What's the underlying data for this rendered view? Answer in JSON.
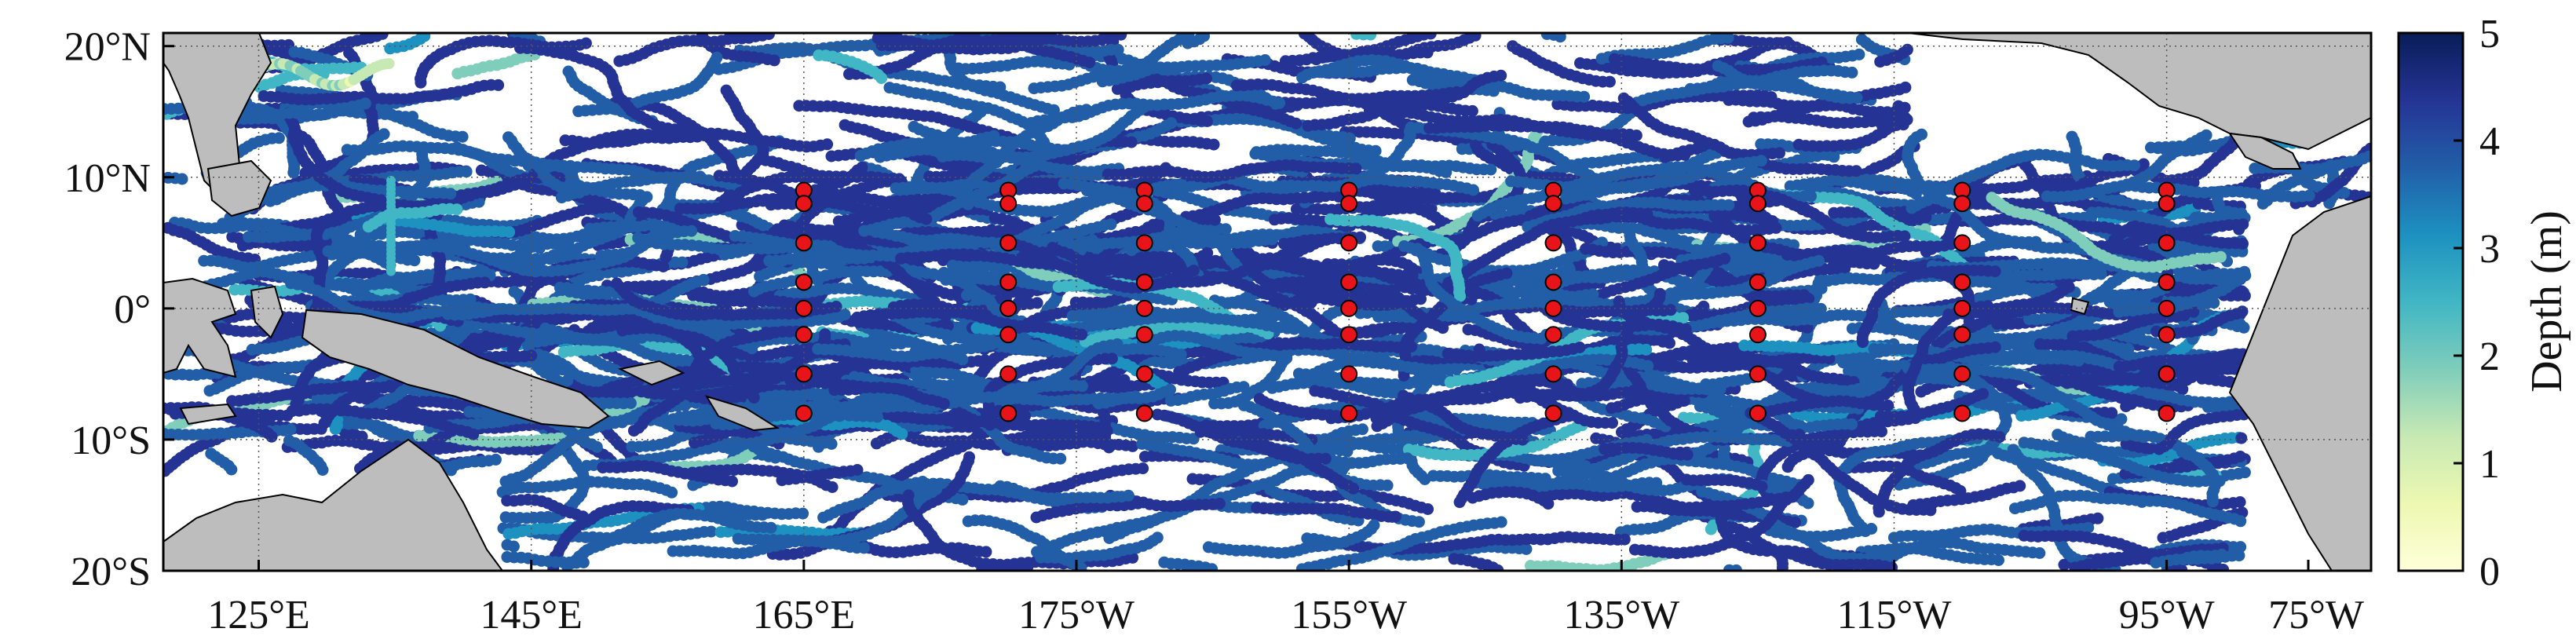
{
  "map": {
    "lon_range_deg_east": [
      118,
      280
    ],
    "lat_range": [
      -20,
      21
    ],
    "lon_ticks": [
      {
        "lon": 125,
        "label": "125°E"
      },
      {
        "lon": 145,
        "label": "145°E"
      },
      {
        "lon": 165,
        "label": "165°E"
      },
      {
        "lon": 185,
        "label": "175°W"
      },
      {
        "lon": 205,
        "label": "155°W"
      },
      {
        "lon": 225,
        "label": "135°W"
      },
      {
        "lon": 245,
        "label": "115°W"
      },
      {
        "lon": 265,
        "label": "95°W"
      },
      {
        "lon": 285,
        "label": "75°W"
      }
    ],
    "lat_ticks": [
      {
        "lat": 20,
        "label": "20°N"
      },
      {
        "lat": 10,
        "label": "10°N"
      },
      {
        "lat": 0,
        "label": "0°"
      },
      {
        "lat": -10,
        "label": "10°S"
      },
      {
        "lat": -20,
        "label": "20°S"
      }
    ],
    "grid": "dotted",
    "land_color": "#bdbdbd",
    "moorings": {
      "color": "#e8141a",
      "lons": [
        165,
        180,
        190,
        205,
        220,
        235,
        250,
        265
      ],
      "lats": [
        9,
        8,
        5,
        2,
        0,
        -2,
        -5,
        -8
      ]
    },
    "track_style": "dense colored dots, mostly depth 4-5 m"
  },
  "colorbar": {
    "label": "Depth (m)",
    "min": 0,
    "max": 5,
    "ticks": [
      "0",
      "1",
      "2",
      "3",
      "4",
      "5"
    ],
    "colormap": [
      "#ffffd9",
      "#edf8b1",
      "#c7e9b4",
      "#7fcdbb",
      "#41b6c4",
      "#1d91c0",
      "#225ea8",
      "#253494",
      "#081d58"
    ]
  }
}
